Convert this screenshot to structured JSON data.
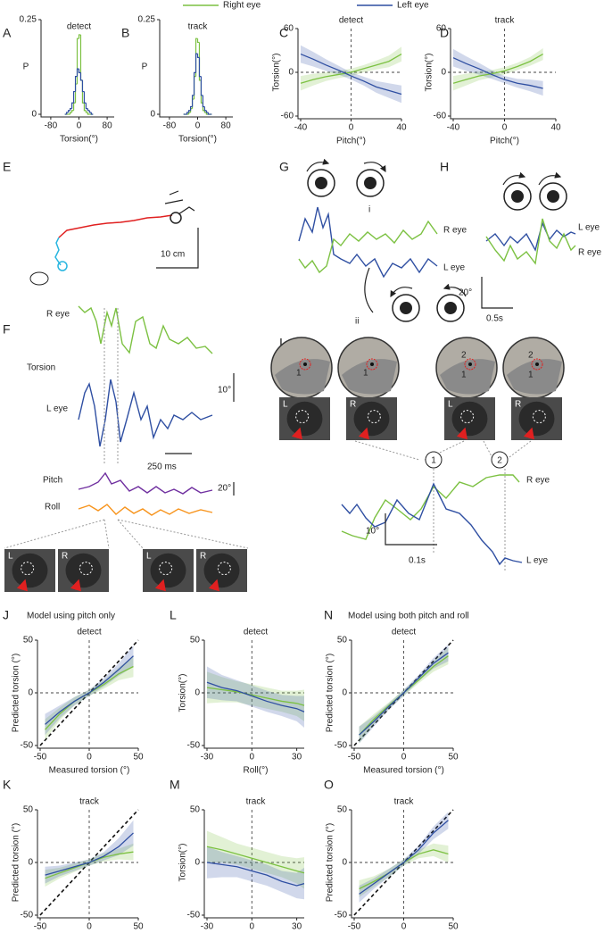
{
  "legend": [
    {
      "name": "Right eye",
      "color": "#7cc142"
    },
    {
      "name": "Left eye",
      "color": "#2f4fa2"
    }
  ],
  "chart_data": [
    {
      "type": "histogram",
      "panel": "A",
      "title": "detect",
      "xlabel": "Torsion(°)",
      "ylabel": "P",
      "bins": [
        -40,
        -35,
        -30,
        -25,
        -20,
        -15,
        -10,
        -5,
        0,
        5,
        10,
        15,
        20,
        25,
        30,
        35,
        40
      ],
      "series": [
        {
          "color": "#7cc142",
          "values": [
            0,
            0,
            0,
            0.005,
            0.01,
            0.03,
            0.08,
            0.2,
            0.21,
            0.09,
            0.03,
            0.01,
            0.005,
            0,
            0,
            0
          ]
        },
        {
          "color": "#2f4fa2",
          "values": [
            0,
            0.005,
            0.01,
            0.015,
            0.03,
            0.06,
            0.1,
            0.12,
            0.11,
            0.09,
            0.06,
            0.03,
            0.015,
            0.01,
            0.005,
            0
          ]
        }
      ],
      "xlim": [
        -100,
        100
      ],
      "ylim": [
        0,
        0.25
      ],
      "xticks": [
        -80,
        0,
        80
      ],
      "yticks": [
        0,
        0.25
      ]
    },
    {
      "type": "histogram",
      "panel": "B",
      "title": "track",
      "xlabel": "Torsion(°)",
      "ylabel": "P",
      "bins": [
        -40,
        -35,
        -30,
        -25,
        -20,
        -15,
        -10,
        -5,
        0,
        5,
        10,
        15,
        20,
        25,
        30,
        35,
        40
      ],
      "series": [
        {
          "color": "#7cc142",
          "values": [
            0,
            0,
            0,
            0.005,
            0.015,
            0.04,
            0.1,
            0.2,
            0.19,
            0.09,
            0.03,
            0.01,
            0.005,
            0,
            0,
            0
          ]
        },
        {
          "color": "#2f4fa2",
          "values": [
            0,
            0,
            0.005,
            0.01,
            0.02,
            0.05,
            0.11,
            0.16,
            0.15,
            0.1,
            0.05,
            0.02,
            0.01,
            0.005,
            0,
            0
          ]
        }
      ],
      "xlim": [
        -100,
        100
      ],
      "ylim": [
        0,
        0.25
      ],
      "xticks": [
        -80,
        0,
        80
      ],
      "yticks": [
        0,
        0.25
      ]
    },
    {
      "type": "line",
      "panel": "C",
      "title": "detect",
      "xlabel": "Pitch(°)",
      "ylabel": "Torsion(°)",
      "x": [
        -40,
        -30,
        -20,
        -10,
        0,
        10,
        20,
        30,
        40
      ],
      "series": [
        {
          "color": "#7cc142",
          "values": [
            -15,
            -10,
            -6,
            -3,
            0,
            5,
            10,
            15,
            25
          ],
          "errors": [
            10,
            8,
            6,
            5,
            5,
            5,
            6,
            8,
            10
          ]
        },
        {
          "color": "#2f4fa2",
          "values": [
            25,
            18,
            10,
            3,
            -5,
            -12,
            -20,
            -25,
            -30
          ],
          "errors": [
            12,
            10,
            8,
            6,
            5,
            6,
            8,
            10,
            12
          ]
        }
      ],
      "xlim": [
        -40,
        40
      ],
      "ylim": [
        -60,
        60
      ],
      "xticks": [
        -40,
        0,
        40
      ],
      "yticks": [
        -60,
        0,
        60
      ],
      "zero_lines": true
    },
    {
      "type": "line",
      "panel": "D",
      "title": "track",
      "xlabel": "Pitch(°)",
      "ylabel": "Torsion(°)",
      "x": [
        -40,
        -30,
        -20,
        -10,
        0,
        10,
        20,
        30
      ],
      "series": [
        {
          "color": "#7cc142",
          "values": [
            -15,
            -10,
            -5,
            -2,
            2,
            8,
            15,
            25
          ],
          "errors": [
            10,
            8,
            6,
            5,
            5,
            5,
            6,
            8
          ]
        },
        {
          "color": "#2f4fa2",
          "values": [
            20,
            12,
            5,
            -3,
            -10,
            -15,
            -18,
            -22
          ],
          "errors": [
            12,
            10,
            8,
            6,
            5,
            6,
            8,
            10
          ]
        }
      ],
      "xlim": [
        -40,
        40
      ],
      "ylim": [
        -60,
        60
      ],
      "xticks": [
        -40,
        0,
        40
      ],
      "yticks": [
        -60,
        0,
        60
      ],
      "zero_lines": true
    },
    {
      "type": "line",
      "panel": "J",
      "note": "Model using pitch only",
      "title": "detect",
      "xlabel": "Measured torsion (°)",
      "ylabel": "Predicted torsion (°)",
      "x": [
        -45,
        -30,
        -15,
        0,
        15,
        30,
        45
      ],
      "series": [
        {
          "color": "#7cc142",
          "values": [
            -35,
            -20,
            -8,
            0,
            8,
            18,
            25
          ],
          "errors": [
            10,
            6,
            4,
            3,
            4,
            6,
            10
          ]
        },
        {
          "color": "#2f4fa2",
          "values": [
            -30,
            -18,
            -8,
            0,
            10,
            22,
            35
          ],
          "errors": [
            10,
            6,
            4,
            3,
            4,
            6,
            10
          ]
        }
      ],
      "xlim": [
        -50,
        50
      ],
      "ylim": [
        -50,
        50
      ],
      "xticks": [
        -50,
        0,
        50
      ],
      "yticks": [
        -50,
        0,
        50
      ],
      "zero_lines": true,
      "identity_line": true
    },
    {
      "type": "line",
      "panel": "L",
      "title": "detect",
      "xlabel": "Roll(°)",
      "ylabel": "Torsion(°)",
      "x": [
        -30,
        -20,
        -10,
        0,
        10,
        20,
        30,
        35
      ],
      "series": [
        {
          "color": "#7cc142",
          "values": [
            5,
            3,
            1,
            -2,
            -5,
            -8,
            -10,
            -12
          ],
          "errors": [
            15,
            12,
            10,
            10,
            10,
            10,
            12,
            15
          ]
        },
        {
          "color": "#2f4fa2",
          "values": [
            10,
            5,
            2,
            -3,
            -8,
            -12,
            -15,
            -18
          ],
          "errors": [
            15,
            12,
            10,
            10,
            10,
            10,
            12,
            15
          ]
        }
      ],
      "xlim": [
        -30,
        35
      ],
      "ylim": [
        -50,
        50
      ],
      "xticks": [
        -30,
        0,
        30
      ],
      "yticks": [
        -50,
        0,
        50
      ],
      "zero_lines": true
    },
    {
      "type": "line",
      "panel": "N",
      "note": "Model using both pitch and roll",
      "title": "detect",
      "xlabel": "Measured torsion (°)",
      "ylabel": "Predicted torsion (°)",
      "x": [
        -45,
        -30,
        -15,
        0,
        15,
        30,
        45
      ],
      "series": [
        {
          "color": "#7cc142",
          "values": [
            -40,
            -25,
            -12,
            0,
            12,
            25,
            35
          ],
          "errors": [
            8,
            5,
            3,
            3,
            3,
            5,
            8
          ]
        },
        {
          "color": "#2f4fa2",
          "values": [
            -40,
            -27,
            -13,
            0,
            14,
            28,
            38
          ],
          "errors": [
            8,
            5,
            3,
            3,
            3,
            5,
            8
          ]
        }
      ],
      "xlim": [
        -50,
        50
      ],
      "ylim": [
        -50,
        50
      ],
      "xticks": [
        -50,
        0,
        50
      ],
      "yticks": [
        -50,
        0,
        50
      ],
      "zero_lines": true,
      "identity_line": true
    },
    {
      "type": "line",
      "panel": "K",
      "title": "track",
      "xlabel": "Measured torsion (°)",
      "ylabel": "Predicted torsion (°)",
      "x": [
        -45,
        -30,
        -15,
        0,
        15,
        30,
        45
      ],
      "series": [
        {
          "color": "#7cc142",
          "values": [
            -15,
            -10,
            -5,
            0,
            5,
            8,
            10
          ],
          "errors": [
            8,
            5,
            4,
            3,
            4,
            5,
            8
          ]
        },
        {
          "color": "#2f4fa2",
          "values": [
            -12,
            -8,
            -4,
            0,
            6,
            15,
            28
          ],
          "errors": [
            8,
            5,
            4,
            3,
            4,
            8,
            12
          ]
        }
      ],
      "xlim": [
        -50,
        50
      ],
      "ylim": [
        -50,
        50
      ],
      "xticks": [
        -50,
        0,
        50
      ],
      "yticks": [
        -50,
        0,
        50
      ],
      "zero_lines": true,
      "identity_line": true
    },
    {
      "type": "line",
      "panel": "M",
      "title": "track",
      "xlabel": "Roll(°)",
      "ylabel": "Torsion(°)",
      "x": [
        -30,
        -20,
        -10,
        0,
        10,
        20,
        30,
        35
      ],
      "series": [
        {
          "color": "#7cc142",
          "values": [
            15,
            12,
            8,
            4,
            0,
            -4,
            -8,
            -10
          ],
          "errors": [
            15,
            12,
            10,
            10,
            10,
            10,
            12,
            15
          ]
        },
        {
          "color": "#2f4fa2",
          "values": [
            0,
            -2,
            -4,
            -8,
            -12,
            -18,
            -22,
            -20
          ],
          "errors": [
            15,
            12,
            10,
            10,
            10,
            10,
            12,
            15
          ]
        }
      ],
      "xlim": [
        -30,
        35
      ],
      "ylim": [
        -50,
        50
      ],
      "xticks": [
        -30,
        0,
        30
      ],
      "yticks": [
        -50,
        0,
        50
      ],
      "zero_lines": true
    },
    {
      "type": "line",
      "panel": "O",
      "title": "track",
      "xlabel": "Measured torsion (°)",
      "ylabel": "Predicted torsion (°)",
      "x": [
        -45,
        -30,
        -15,
        0,
        15,
        30,
        45
      ],
      "series": [
        {
          "color": "#7cc142",
          "values": [
            -25,
            -18,
            -10,
            0,
            8,
            12,
            8
          ],
          "errors": [
            8,
            5,
            4,
            3,
            4,
            6,
            8
          ]
        },
        {
          "color": "#2f4fa2",
          "values": [
            -30,
            -20,
            -10,
            0,
            12,
            28,
            40
          ],
          "errors": [
            8,
            5,
            4,
            3,
            4,
            6,
            8
          ]
        }
      ],
      "xlim": [
        -50,
        50
      ],
      "ylim": [
        -50,
        50
      ],
      "xticks": [
        -50,
        0,
        50
      ],
      "yticks": [
        -50,
        0,
        50
      ],
      "zero_lines": true,
      "identity_line": true
    }
  ],
  "figures": {
    "E": {
      "panel": "E",
      "scale": "10 cm"
    },
    "F": {
      "panel": "F",
      "r_eye": "R eye",
      "torsion": "Torsion",
      "l_eye": "L eye",
      "torsion_scale": "10°",
      "time_scale": "250 ms",
      "pitch": "Pitch",
      "angle_scale": "20°",
      "roll": "Roll",
      "photos": [
        "L",
        "R",
        "L",
        "R"
      ]
    },
    "G": {
      "panel": "G",
      "marker_1": "i",
      "marker_2": "ii",
      "r_eye": "R eye",
      "l_eye": "L eye",
      "angle_scale": "20°",
      "time_scale": "0.5s"
    },
    "H": {
      "panel": "H",
      "l_eye": "L eye",
      "r_eye": "R eye"
    },
    "I": {
      "panel": "I",
      "view_labels": [
        "1",
        "1",
        "2",
        "1",
        "2",
        "1"
      ],
      "photos": [
        "L",
        "R",
        "L",
        "R"
      ],
      "events": [
        "1",
        "2"
      ],
      "angle_scale": "10°",
      "time_scale": "0.1s",
      "r_eye": "R eye",
      "l_eye": "L eye"
    }
  }
}
